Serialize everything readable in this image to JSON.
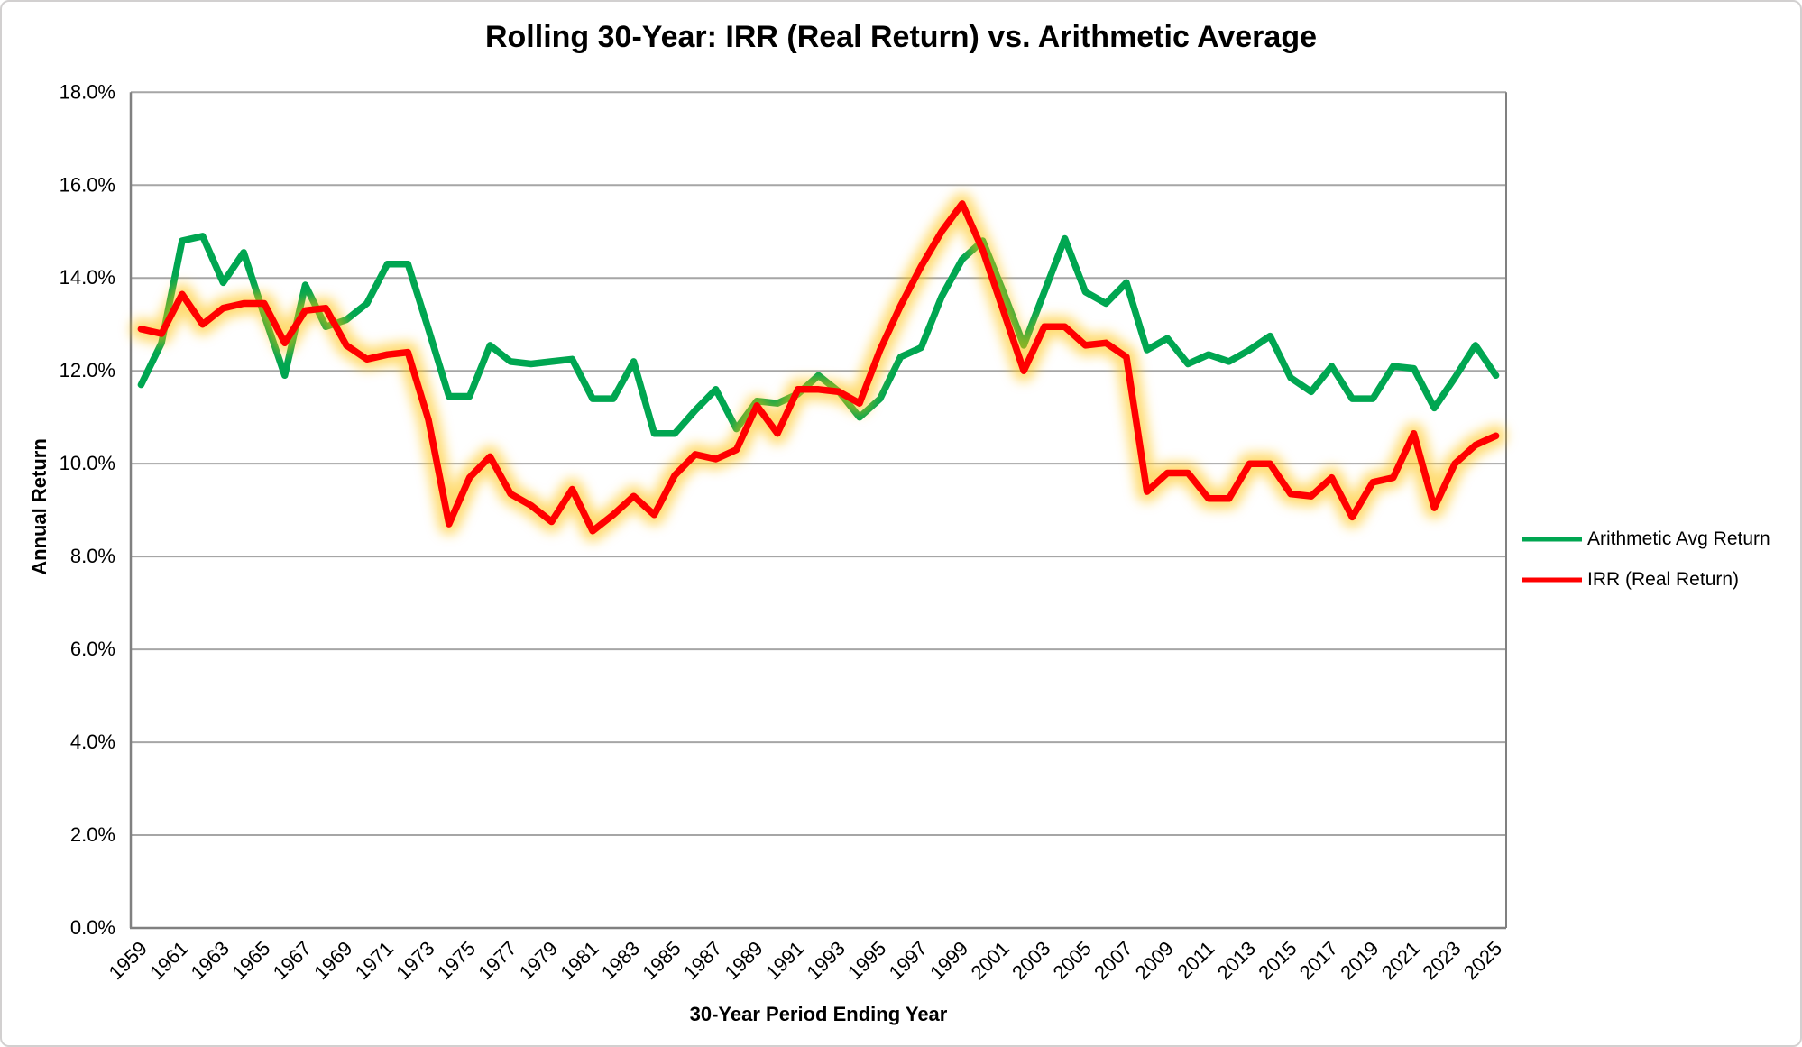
{
  "title": "Rolling 30-Year: IRR (Real Return) vs. Arithmetic Average",
  "y_axis": {
    "title": "Annual Return",
    "tick_labels": [
      "0.0%",
      "2.0%",
      "4.0%",
      "6.0%",
      "8.0%",
      "10.0%",
      "12.0%",
      "14.0%",
      "16.0%",
      "18.0%"
    ],
    "min": 0,
    "max": 18,
    "step": 2
  },
  "x_axis": {
    "title": "30-Year Period Ending Year",
    "tick_labels": [
      "1959",
      "1961",
      "1963",
      "1965",
      "1967",
      "1969",
      "1971",
      "1973",
      "1975",
      "1977",
      "1979",
      "1981",
      "1983",
      "1985",
      "1987",
      "1989",
      "1991",
      "1993",
      "1995",
      "1997",
      "1999",
      "2001",
      "2003",
      "2005",
      "2007",
      "2009",
      "2011",
      "2013",
      "2015",
      "2017",
      "2019",
      "2021",
      "2023",
      "2025"
    ]
  },
  "legend": [
    {
      "label": "Arithmetic Avg Return",
      "color": "#00A651"
    },
    {
      "label": "IRR (Real Return)",
      "color": "#FF0000"
    }
  ],
  "colors": {
    "green_series": "#00A651",
    "red_series": "#FF0000",
    "red_glow": "#FFC000",
    "gridline": "#A6A6A6",
    "axis_line": "#808080",
    "text": "#000000"
  },
  "chart_data": {
    "type": "line",
    "x": [
      1959,
      1960,
      1961,
      1962,
      1963,
      1964,
      1965,
      1966,
      1967,
      1968,
      1969,
      1970,
      1971,
      1972,
      1973,
      1974,
      1975,
      1976,
      1977,
      1978,
      1979,
      1980,
      1981,
      1982,
      1983,
      1984,
      1985,
      1986,
      1987,
      1988,
      1989,
      1990,
      1991,
      1992,
      1993,
      1994,
      1995,
      1996,
      1997,
      1998,
      1999,
      2000,
      2001,
      2002,
      2003,
      2004,
      2005,
      2006,
      2007,
      2008,
      2009,
      2010,
      2011,
      2012,
      2013,
      2014,
      2015,
      2016,
      2017,
      2018,
      2019,
      2020,
      2021,
      2022,
      2023,
      2024,
      2025
    ],
    "series": [
      {
        "name": "Arithmetic Avg Return",
        "glow": false,
        "values": [
          11.7,
          12.6,
          14.8,
          14.9,
          13.9,
          14.55,
          13.2,
          11.9,
          13.85,
          12.95,
          13.1,
          13.45,
          14.3,
          14.3,
          12.9,
          11.45,
          11.45,
          12.55,
          12.2,
          12.15,
          12.2,
          12.25,
          11.4,
          11.4,
          12.2,
          10.65,
          10.65,
          11.15,
          11.6,
          10.75,
          11.35,
          11.3,
          11.5,
          11.9,
          11.55,
          11.0,
          11.4,
          12.3,
          12.5,
          13.6,
          14.4,
          14.8,
          13.7,
          12.55,
          13.7,
          14.85,
          13.7,
          13.45,
          13.9,
          12.45,
          12.7,
          12.15,
          12.35,
          12.2,
          12.45,
          12.75,
          11.85,
          11.55,
          12.1,
          11.4,
          11.4,
          12.1,
          12.05,
          11.2,
          11.85,
          12.55,
          11.9
        ]
      },
      {
        "name": "IRR (Real Return)",
        "glow": true,
        "values": [
          12.9,
          12.8,
          13.65,
          13.0,
          13.35,
          13.45,
          13.45,
          12.6,
          13.3,
          13.35,
          12.55,
          12.25,
          12.35,
          12.4,
          10.95,
          8.7,
          9.7,
          10.15,
          9.35,
          9.1,
          8.75,
          9.45,
          8.55,
          8.9,
          9.3,
          8.9,
          9.75,
          10.2,
          10.1,
          10.3,
          11.25,
          10.65,
          11.6,
          11.6,
          11.55,
          11.3,
          12.45,
          13.4,
          14.25,
          15.0,
          15.6,
          14.6,
          13.3,
          12.0,
          12.95,
          12.95,
          12.55,
          12.6,
          12.3,
          9.4,
          9.8,
          9.8,
          9.25,
          9.25,
          10.0,
          10.0,
          9.35,
          9.3,
          9.7,
          8.85,
          9.6,
          9.7,
          10.65,
          9.05,
          10.0,
          10.4,
          10.6
        ]
      }
    ],
    "title": "Rolling 30-Year: IRR (Real Return) vs. Arithmetic Average",
    "xlabel": "30-Year Period Ending Year",
    "ylabel": "Annual Return",
    "ylim": [
      0,
      18
    ],
    "grid": "horizontal",
    "legend_position": "right"
  }
}
